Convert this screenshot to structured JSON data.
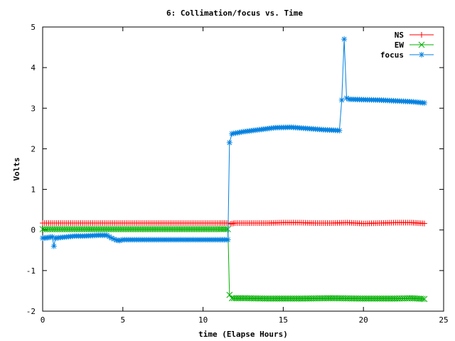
{
  "chart_data": {
    "type": "line",
    "title": "6: Collimation/focus vs. Time",
    "xlabel": "time (Elapse Hours)",
    "ylabel": "Volts",
    "xlim": [
      0,
      25
    ],
    "ylim": [
      -2,
      5
    ],
    "xticks": [
      0,
      5,
      10,
      15,
      20,
      25
    ],
    "yticks": [
      -2,
      -1,
      0,
      1,
      2,
      3,
      4,
      5
    ],
    "grid": false,
    "legend_position": "top-right",
    "series": [
      {
        "name": "NS",
        "color": "#ff0000",
        "marker": "plus",
        "x": [
          0,
          1,
          2,
          3,
          4,
          5,
          6,
          7,
          8,
          9,
          10,
          11,
          11.55,
          11.7,
          12,
          13,
          14,
          15,
          16,
          17,
          18,
          19,
          20,
          21,
          22,
          23,
          23.8
        ],
        "y": [
          0.17,
          0.17,
          0.17,
          0.17,
          0.17,
          0.17,
          0.17,
          0.17,
          0.17,
          0.17,
          0.17,
          0.17,
          0.17,
          0.15,
          0.17,
          0.17,
          0.17,
          0.18,
          0.18,
          0.17,
          0.17,
          0.18,
          0.16,
          0.17,
          0.18,
          0.18,
          0.16
        ]
      },
      {
        "name": "EW",
        "color": "#00b000",
        "marker": "cross",
        "x": [
          0,
          1,
          2,
          3,
          4,
          5,
          6,
          7,
          8,
          9,
          10,
          11,
          11.55,
          11.65,
          11.8,
          12.5,
          14,
          16,
          18,
          20,
          22,
          23,
          23.8
        ],
        "y": [
          0.02,
          0.02,
          0.02,
          0.02,
          0.02,
          0.02,
          0.02,
          0.02,
          0.02,
          0.02,
          0.02,
          0.02,
          0.02,
          -1.6,
          -1.68,
          -1.68,
          -1.69,
          -1.69,
          -1.68,
          -1.69,
          -1.69,
          -1.68,
          -1.7
        ]
      },
      {
        "name": "focus",
        "color": "#0080e0",
        "marker": "star",
        "x": [
          0,
          0.3,
          0.6,
          0.7,
          0.8,
          1,
          1.5,
          2,
          2.5,
          3,
          3.5,
          4,
          4.3,
          4.6,
          4.8,
          5,
          6,
          7,
          8,
          9,
          10,
          11,
          11.55,
          11.65,
          11.8,
          12.5,
          13.5,
          14.5,
          15.5,
          16.5,
          17.5,
          18.5,
          18.65,
          18.8,
          18.95,
          19.1,
          20,
          21,
          22,
          23,
          23.8
        ],
        "y": [
          -0.2,
          -0.19,
          -0.17,
          -0.4,
          -0.2,
          -0.19,
          -0.17,
          -0.15,
          -0.15,
          -0.14,
          -0.13,
          -0.13,
          -0.2,
          -0.25,
          -0.26,
          -0.24,
          -0.24,
          -0.24,
          -0.24,
          -0.24,
          -0.24,
          -0.24,
          -0.24,
          2.15,
          2.37,
          2.42,
          2.47,
          2.52,
          2.53,
          2.5,
          2.47,
          2.45,
          3.2,
          4.7,
          3.25,
          3.22,
          3.21,
          3.2,
          3.18,
          3.16,
          3.13
        ]
      }
    ]
  }
}
